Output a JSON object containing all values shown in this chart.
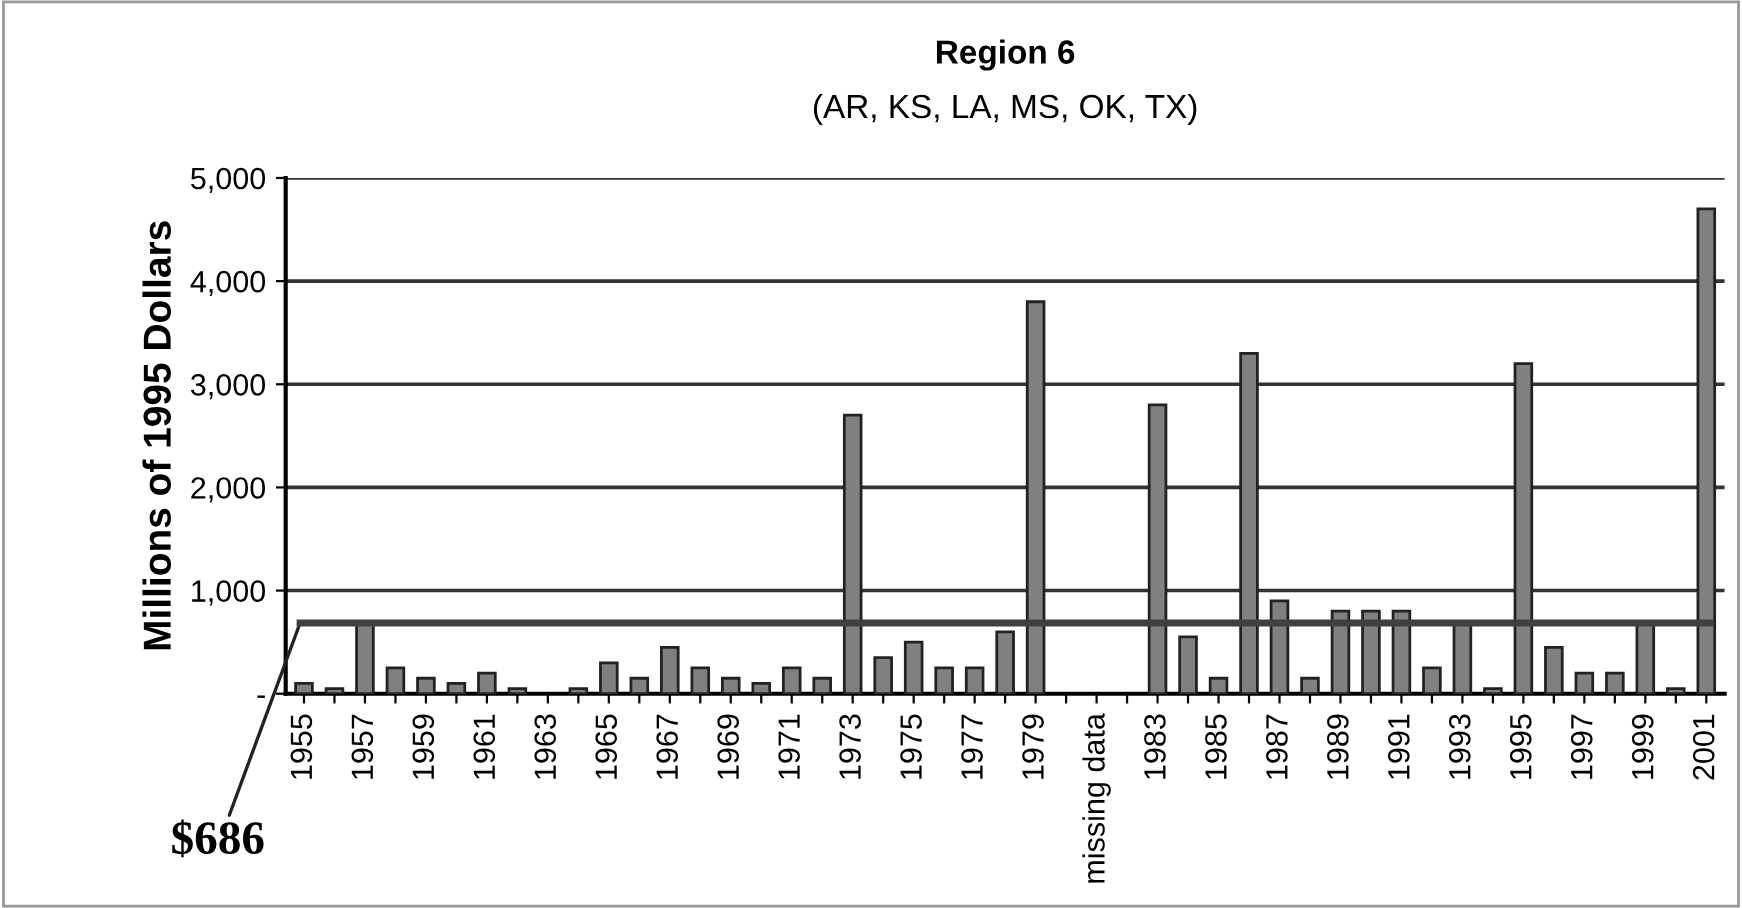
{
  "chart_data": {
    "type": "bar",
    "title": "Region 6",
    "subtitle": "(AR, KS, LA, MS, OK, TX)",
    "ylabel": "Millions of 1995 Dollars",
    "categories": [
      "1955",
      null,
      "1957",
      null,
      "1959",
      null,
      "1961",
      null,
      "1963",
      null,
      "1965",
      null,
      "1967",
      null,
      "1969",
      null,
      "1971",
      null,
      "1973",
      null,
      "1975",
      null,
      "1977",
      null,
      "1979",
      null,
      "missing data",
      null,
      "1983",
      null,
      "1985",
      null,
      "1987",
      null,
      "1989",
      null,
      "1991",
      null,
      "1993",
      null,
      "1995",
      null,
      "1997",
      null,
      "1999",
      null,
      "2001"
    ],
    "values": [
      100,
      50,
      700,
      250,
      150,
      100,
      200,
      50,
      null,
      50,
      300,
      150,
      450,
      250,
      150,
      100,
      250,
      150,
      2700,
      350,
      500,
      250,
      250,
      600,
      3800,
      null,
      null,
      null,
      2800,
      550,
      150,
      3300,
      900,
      150,
      800,
      800,
      800,
      250,
      700,
      50,
      3200,
      450,
      200,
      200,
      700,
      50,
      4700
    ],
    "color": "#808080",
    "ylim": [
      0,
      5000
    ],
    "yticks": [
      {
        "value": 0,
        "label": "-"
      },
      {
        "value": 1000,
        "label": "1,000"
      },
      {
        "value": 2000,
        "label": "2,000"
      },
      {
        "value": 3000,
        "label": "3,000"
      },
      {
        "value": 4000,
        "label": "4,000"
      },
      {
        "value": 5000,
        "label": "5,000"
      }
    ],
    "grid": "y",
    "ref_lines": [
      {
        "axis": "y",
        "value": 686,
        "label": "$686",
        "color": "#404040"
      }
    ]
  }
}
